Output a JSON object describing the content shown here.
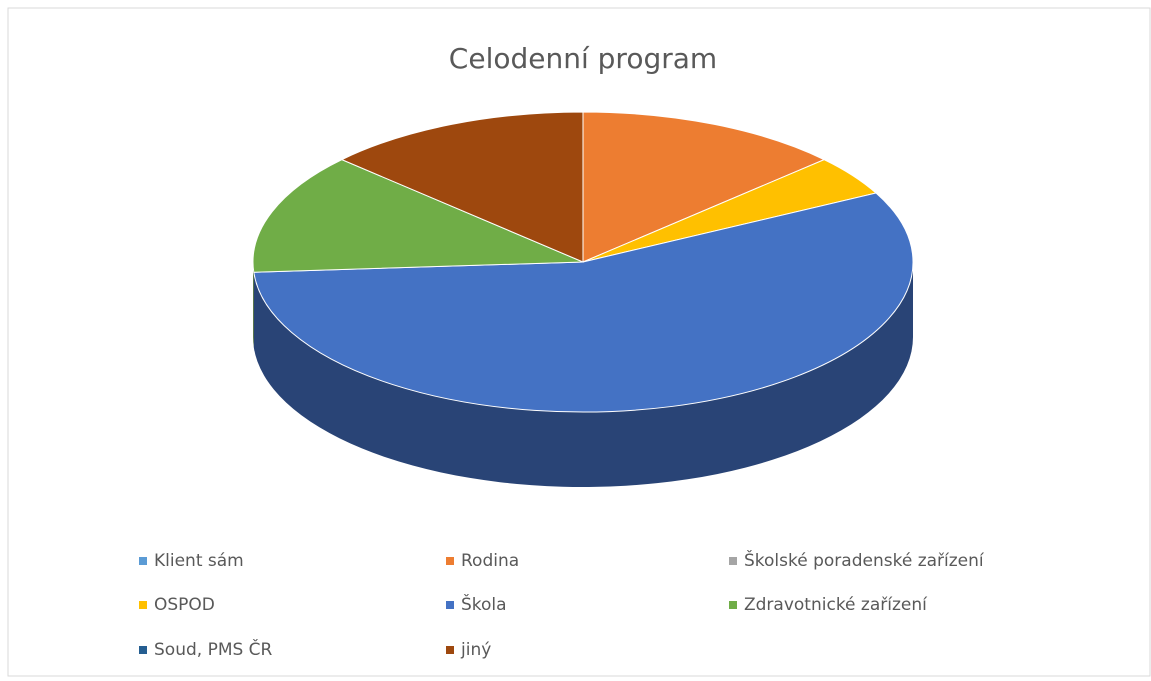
{
  "chart_data": {
    "type": "pie",
    "title": "Celodenní program",
    "categories": [
      "Klient sám",
      "Rodina",
      "Školské poradenské zařízení",
      "OSPOD",
      "Škola",
      "Zdravotnické zařízení",
      "Soud, PMS ČR",
      "jiný"
    ],
    "values": [
      0,
      3,
      0,
      1,
      13,
      3,
      0,
      3
    ],
    "colors": [
      "#5b9bd5",
      "#ed7d31",
      "#a5a5a5",
      "#ffc000",
      "#4472c4",
      "#70ad47",
      "#255e91",
      "#9e480e"
    ],
    "legend": "bottom"
  }
}
